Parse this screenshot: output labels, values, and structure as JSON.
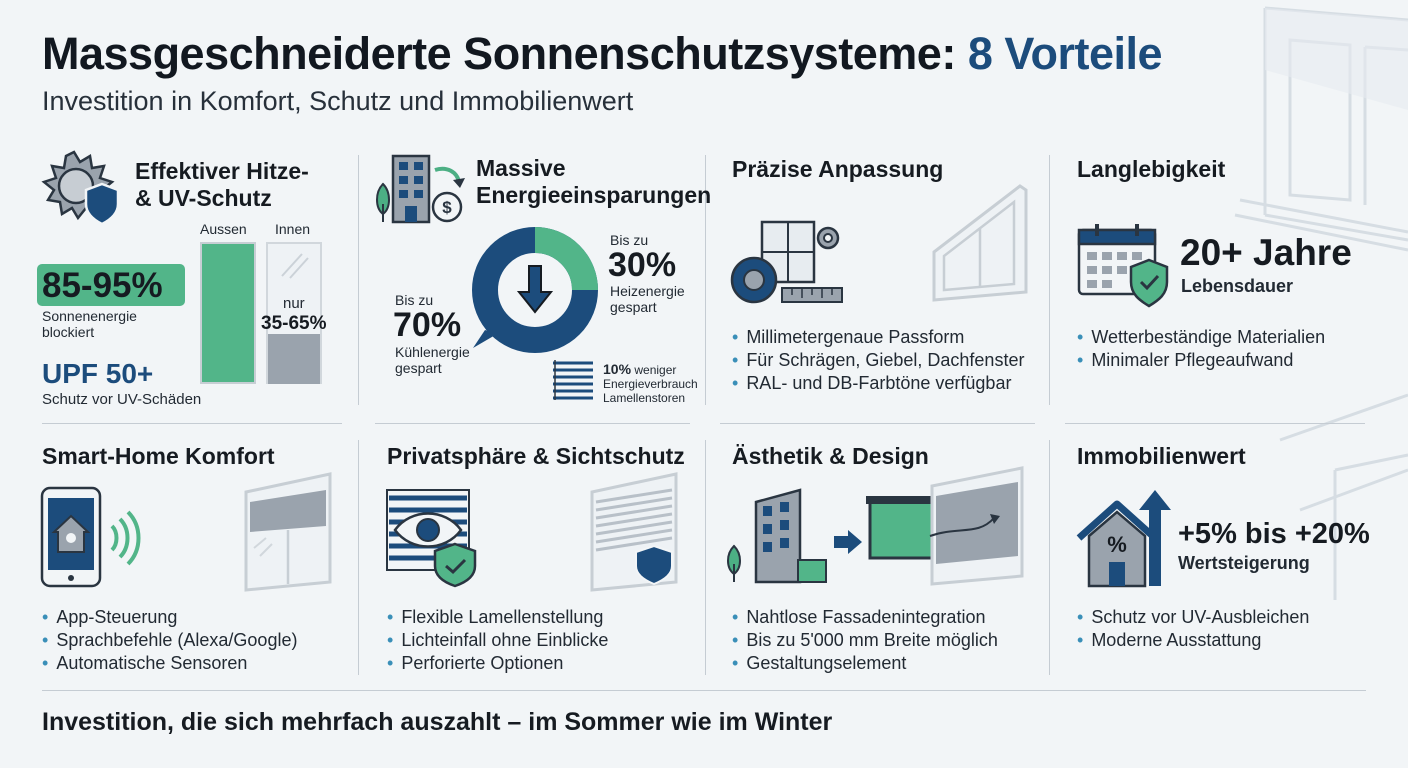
{
  "header": {
    "title_main": "Massgeschneiderte Sonnenschutzsysteme:",
    "title_accent": "8 Vorteile",
    "subtitle": "Investition in Komfort, Schutz und Immobilienwert"
  },
  "colors": {
    "navy": "#1c4c7c",
    "green": "#4caf84",
    "gray": "#9aa3ad",
    "background": "#f2f5f7"
  },
  "cards": {
    "heat": {
      "title_line1": "Effektiver Hitze-",
      "title_line2": "& UV-Schutz",
      "stat_value": "85-95%",
      "stat_label_line1": "Sonnenenergie",
      "stat_label_line2": "blockiert",
      "bar_outside_label": "Aussen",
      "bar_inside_label": "Innen",
      "bar_inside_prefix": "nur",
      "bar_inside_value": "35-65%",
      "upf_value": "UPF 50+",
      "upf_label": "Schutz vor UV-Schäden",
      "icon": "sun-shield-icon"
    },
    "energy": {
      "title_line1": "Massive",
      "title_line2": "Energieeinsparungen",
      "cooling_prefix": "Bis zu",
      "cooling_value": "70%",
      "cooling_label_line1": "Kühlenergie",
      "cooling_label_line2": "gespart",
      "heating_prefix": "Bis zu",
      "heating_value": "30%",
      "heating_label_line1": "Heizenergie",
      "heating_label_line2": "gespart",
      "blinds_value": "10%",
      "blinds_text1": "weniger",
      "blinds_text2": "Energieverbrauch",
      "blinds_text3": "Lamellenstoren",
      "icon": "building-savings-icon"
    },
    "fit": {
      "title": "Präzise Anpassung",
      "bullets": [
        "Millimetergenaue Passform",
        "Für Schrägen, Giebel, Dachfenster",
        "RAL- und DB-Farbtöne verfügbar"
      ],
      "icon": "measuring-tape-icon"
    },
    "durability": {
      "title": "Langlebigkeit",
      "stat_value": "20+ Jahre",
      "stat_label": "Lebensdauer",
      "bullets": [
        "Wetterbeständige Materialien",
        "Minimaler Pflegeaufwand"
      ],
      "icon": "calendar-shield-icon"
    },
    "smarthome": {
      "title": "Smart-Home Komfort",
      "bullets": [
        "App-Steuerung",
        "Sprachbefehle (Alexa/Google)",
        "Automatische Sensoren"
      ],
      "icon": "smartphone-home-icon"
    },
    "privacy": {
      "title": "Privatsphäre & Sichtschutz",
      "bullets": [
        "Flexible Lamellenstellung",
        "Lichteinfall ohne Einblicke",
        "Perforierte Optionen"
      ],
      "icon": "eye-blinds-icon"
    },
    "design": {
      "title": "Ästhetik & Design",
      "bullets": [
        "Nahtlose Fassadenintegration",
        "Bis zu 5'000 mm Breite möglich",
        "Gestaltungselement"
      ],
      "icon": "facade-design-icon"
    },
    "value": {
      "title": "Immobilienwert",
      "stat_value": "+5% bis +20%",
      "stat_label": "Wertsteigerung",
      "bullets": [
        "Schutz vor UV-Ausbleichen",
        "Moderne Ausstattung"
      ],
      "icon": "house-value-icon"
    }
  },
  "footer": {
    "text": "Investition, die sich mehrfach auszahlt – im Sommer wie im Winter"
  }
}
